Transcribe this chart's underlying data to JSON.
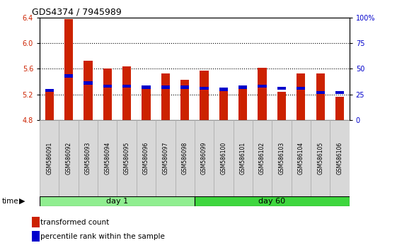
{
  "title": "GDS4374 / 7945989",
  "samples": [
    "GSM586091",
    "GSM586092",
    "GSM586093",
    "GSM586094",
    "GSM586095",
    "GSM586096",
    "GSM586097",
    "GSM586098",
    "GSM586099",
    "GSM586100",
    "GSM586101",
    "GSM586102",
    "GSM586103",
    "GSM586104",
    "GSM586105",
    "GSM586106"
  ],
  "transformed_count": [
    5.27,
    6.38,
    5.72,
    5.6,
    5.64,
    5.3,
    5.53,
    5.43,
    5.57,
    5.27,
    5.3,
    5.62,
    5.24,
    5.53,
    5.53,
    5.16
  ],
  "percentile_rank": [
    29,
    43,
    36,
    33,
    33,
    32,
    32,
    32,
    31,
    30,
    32,
    33,
    31,
    31,
    27,
    27
  ],
  "groups": [
    {
      "label": "day 1",
      "start": 0,
      "end": 8,
      "color": "#90EE90"
    },
    {
      "label": "day 60",
      "start": 8,
      "end": 16,
      "color": "#3ED63E"
    }
  ],
  "ylim": [
    4.8,
    6.4
  ],
  "y_ticks_left": [
    4.8,
    5.2,
    5.6,
    6.0,
    6.4
  ],
  "y_ticks_right_vals": [
    0,
    25,
    50,
    75,
    100
  ],
  "y_ticks_right_labels": [
    "0",
    "25",
    "50",
    "75",
    "100%"
  ],
  "bar_color": "#CC2200",
  "blue_color": "#0000CC",
  "base_value": 4.8,
  "background_color": "#ffffff",
  "grid_color": "#000000",
  "tick_label_color_left": "#CC2200",
  "tick_label_color_right": "#0000CC",
  "bar_width": 0.45,
  "xticklabel_bg": "#d0d0d0"
}
